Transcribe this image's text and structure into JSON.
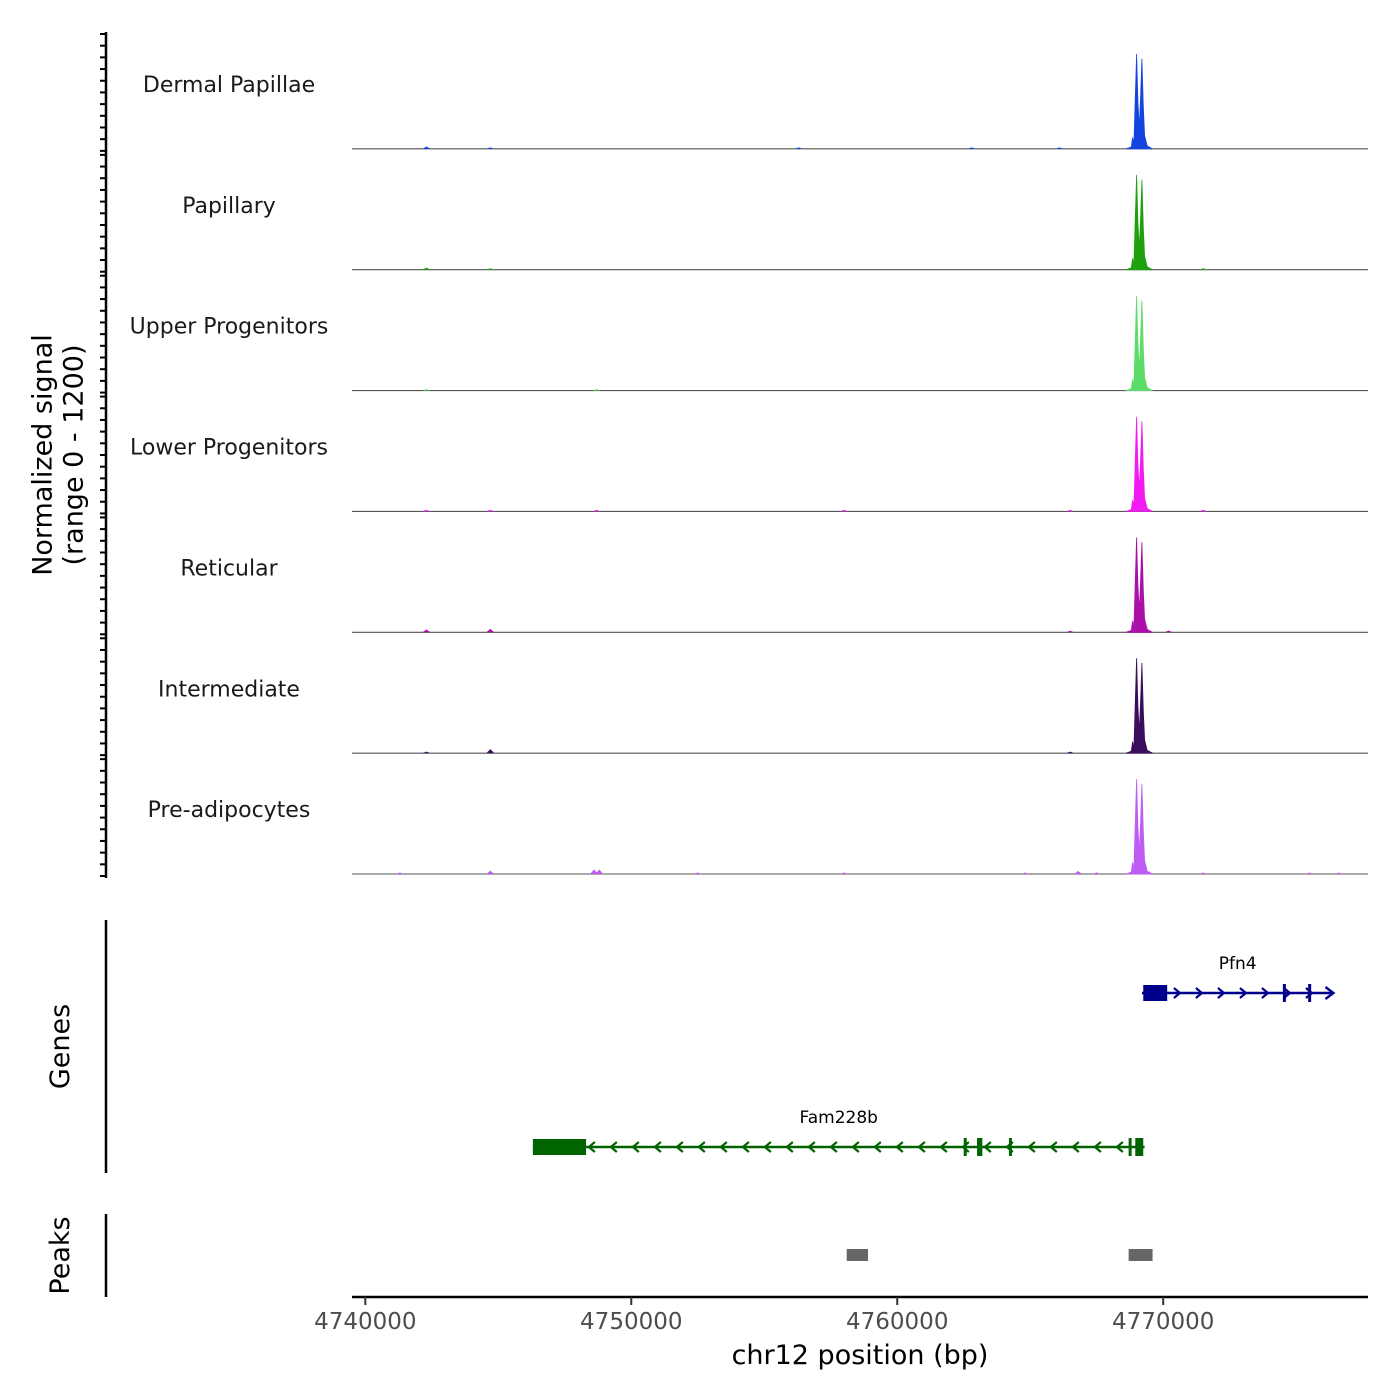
{
  "chart_data": {
    "type": "area",
    "chromosome": "chr12",
    "xlabel": "chr12 position (bp)",
    "xlim": [
      4739500,
      4777700
    ],
    "x_ticks": [
      4740000,
      4750000,
      4760000,
      4770000
    ],
    "x_tick_labels": [
      "4740000",
      "4750000",
      "4760000",
      "4770000"
    ],
    "coverage": {
      "ylabel": "Normalized signal\n(range 0 - 1200)",
      "ylabel_lines": [
        "Normalized signal",
        "(range 0 - 1200)"
      ],
      "ylim": [
        0,
        1200
      ],
      "peak_shape": [
        [
          4768600,
          0
        ],
        [
          4768800,
          0.02
        ],
        [
          4768850,
          0.12
        ],
        [
          4768900,
          0.05
        ],
        [
          4768950,
          0.55
        ],
        [
          4769000,
          1.0
        ],
        [
          4769050,
          0.5
        ],
        [
          4769100,
          0.22
        ],
        [
          4769150,
          0.55
        ],
        [
          4769200,
          0.95
        ],
        [
          4769250,
          0.45
        ],
        [
          4769300,
          0.14
        ],
        [
          4769400,
          0.03
        ],
        [
          4769600,
          0
        ]
      ],
      "tracks": [
        {
          "name": "Dermal Papillae",
          "color": "#1344e0",
          "peak": 1200,
          "bumps": [
            [
              4742300,
              30
            ],
            [
              4744700,
              12
            ],
            [
              4756300,
              18
            ],
            [
              4762800,
              10
            ],
            [
              4766100,
              12
            ]
          ]
        },
        {
          "name": "Papillary",
          "color": "#1fa10e",
          "peak": 1170,
          "bumps": [
            [
              4742300,
              25
            ],
            [
              4744700,
              10
            ],
            [
              4771500,
              10
            ]
          ]
        },
        {
          "name": "Upper Progenitors",
          "color": "#5ddc6a",
          "peak": 1340,
          "bumps": [
            [
              4742300,
              10
            ],
            [
              4748700,
              6
            ]
          ]
        },
        {
          "name": "Lower Progenitors",
          "color": "#f21bf2",
          "peak": 1400,
          "bumps": [
            [
              4742300,
              18
            ],
            [
              4744700,
              14
            ],
            [
              4748700,
              12
            ],
            [
              4758000,
              10
            ],
            [
              4766500,
              12
            ],
            [
              4771500,
              12
            ]
          ]
        },
        {
          "name": "Reticular",
          "color": "#ab10a8",
          "peak": 940,
          "bumps": [
            [
              4742300,
              28
            ],
            [
              4744700,
              34
            ],
            [
              4766500,
              14
            ],
            [
              4770200,
              18
            ]
          ]
        },
        {
          "name": "Intermediate",
          "color": "#3b0d5c",
          "peak": 980,
          "bumps": [
            [
              4742300,
              16
            ],
            [
              4744700,
              42
            ],
            [
              4766500,
              10
            ]
          ]
        },
        {
          "name": "Pre-adipocytes",
          "color": "#be5cf5",
          "peak": 1270,
          "bumps": [
            [
              4741300,
              18
            ],
            [
              4744700,
              46
            ],
            [
              4748600,
              62
            ],
            [
              4748800,
              60
            ],
            [
              4752500,
              12
            ],
            [
              4758000,
              12
            ],
            [
              4764800,
              12
            ],
            [
              4766800,
              40
            ],
            [
              4767500,
              22
            ],
            [
              4771500,
              14
            ],
            [
              4775500,
              14
            ],
            [
              4776600,
              12
            ]
          ]
        }
      ]
    },
    "genes": {
      "ylabel": "Genes",
      "items": [
        {
          "name": "Pfn4",
          "strand": "+",
          "color": "#00008b",
          "start": 4769200,
          "end": 4776400,
          "exons": [
            [
              4769250,
              4770150
            ],
            [
              4774500,
              4774600
            ],
            [
              4775450,
              4775550
            ]
          ]
        },
        {
          "name": "Fam228b",
          "strand": "-",
          "color": "#006400",
          "start": 4746300,
          "end": 4769300,
          "exons": [
            [
              4746300,
              4748300
            ],
            [
              4762500,
              4762600
            ],
            [
              4763000,
              4763200
            ],
            [
              4764200,
              4764300
            ],
            [
              4768700,
              4768800
            ],
            [
              4768950,
              4769250
            ]
          ]
        }
      ]
    },
    "peaks": {
      "ylabel": "Peaks",
      "items": [
        [
          4758100,
          4758900
        ],
        [
          4768700,
          4769600
        ]
      ],
      "color": "#666666"
    }
  }
}
